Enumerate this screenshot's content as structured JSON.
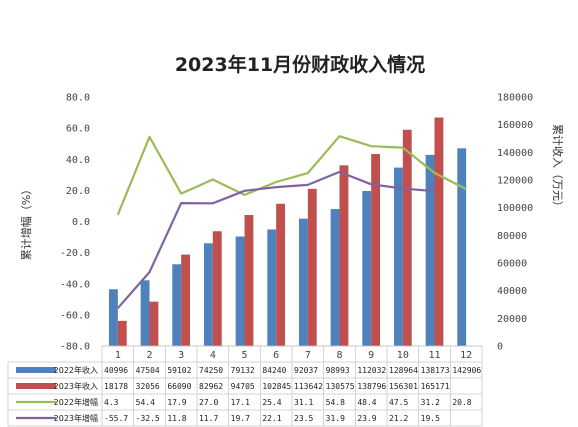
{
  "chart_data": {
    "type": "bar",
    "title": "2023年11月份财政收入情况",
    "categories": [
      "1",
      "2",
      "3",
      "4",
      "5",
      "6",
      "7",
      "8",
      "9",
      "10",
      "11",
      "12"
    ],
    "left_axis": {
      "label": "累计增幅（%）",
      "range": [
        -80,
        80
      ],
      "ticks": [
        "80.0",
        "60.0",
        "40.0",
        "20.0",
        "0.0",
        "-20.0",
        "-40.0",
        "-60.0",
        "-80.0"
      ]
    },
    "right_axis": {
      "label": "累计收入（万元）",
      "range": [
        0,
        180000
      ],
      "ticks": [
        "180000",
        "160000",
        "140000",
        "120000",
        "100000",
        "80000",
        "60000",
        "40000",
        "20000",
        "0"
      ]
    },
    "series": [
      {
        "name": "2022年收入",
        "type": "bar",
        "axis": "right",
        "color": "#4f81bd",
        "values": [
          40996,
          47504,
          59102,
          74250,
          79132,
          84240,
          92037,
          98993,
          112032,
          128964,
          138173,
          142906
        ],
        "labels": [
          "40996",
          "47504",
          "59102",
          "74250",
          "79132",
          "84240",
          "92037",
          "98993",
          "112032",
          "128964",
          "138173",
          "142906"
        ]
      },
      {
        "name": "2023年收入",
        "type": "bar",
        "axis": "right",
        "color": "#c0504d",
        "values": [
          18178,
          32056,
          66090,
          82962,
          94705,
          102845,
          113642,
          130575,
          138796,
          156301,
          165171,
          null
        ],
        "labels": [
          "18178",
          "32056",
          "66090",
          "82962",
          "94705",
          "102845",
          "113642",
          "130575",
          "138796",
          "156301",
          "165171",
          ""
        ]
      },
      {
        "name": "2022年增幅",
        "type": "line",
        "axis": "left",
        "color": "#9bbb59",
        "values": [
          4.3,
          54.4,
          17.9,
          27.0,
          17.1,
          25.4,
          31.1,
          54.8,
          48.4,
          47.5,
          31.2,
          20.8
        ],
        "labels": [
          "4.3",
          "54.4",
          "17.9",
          "27.0",
          "17.1",
          "25.4",
          "31.1",
          "54.8",
          "48.4",
          "47.5",
          "31.2",
          "20.8"
        ]
      },
      {
        "name": "2023年增幅",
        "type": "line",
        "axis": "left",
        "color": "#8064a2",
        "values": [
          -55.7,
          -32.5,
          11.8,
          11.7,
          19.7,
          22.1,
          23.5,
          31.9,
          23.9,
          21.2,
          19.5,
          null
        ],
        "labels": [
          "-55.7",
          "-32.5",
          "11.8",
          "11.7",
          "19.7",
          "22.1",
          "23.5",
          "31.9",
          "23.9",
          "21.2",
          "19.5",
          ""
        ]
      }
    ],
    "legend": "bottom-table",
    "grid": false
  }
}
